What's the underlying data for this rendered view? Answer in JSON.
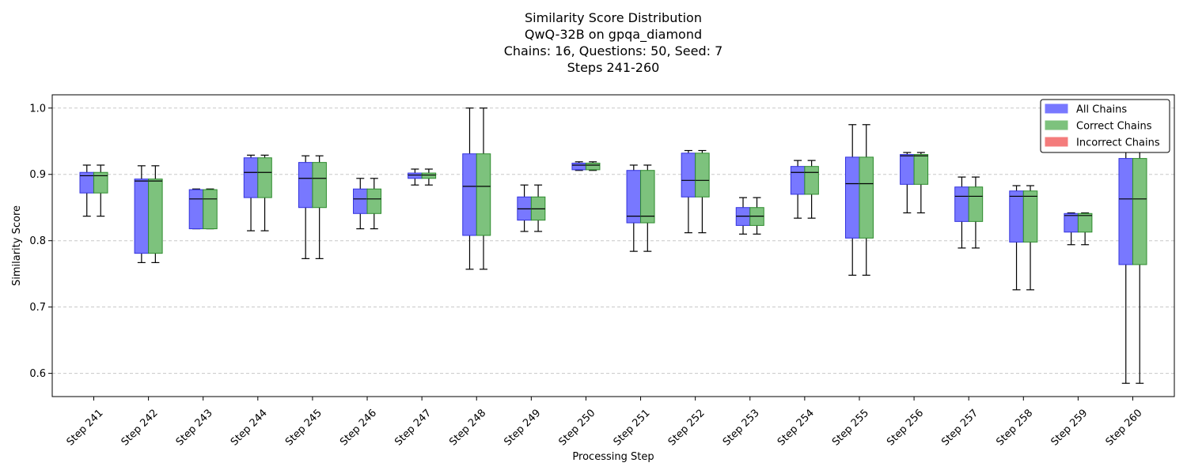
{
  "chart_data": {
    "type": "box",
    "title_lines": [
      "Similarity Score Distribution",
      "QwQ-32B on gpqa_diamond",
      "Chains: 16, Questions: 50, Seed: 7",
      "Steps 241-260"
    ],
    "xlabel": "Processing Step",
    "ylabel": "Similarity Score",
    "ylim": [
      0.565,
      1.02
    ],
    "yticks": [
      0.6,
      0.7,
      0.8,
      0.9,
      1.0
    ],
    "ytick_labels": [
      "0.6",
      "0.7",
      "0.8",
      "0.9",
      "1.0"
    ],
    "grid": "horizontal dashed",
    "legend_position": "top-right",
    "legend": [
      {
        "label": "All Chains",
        "color": "#7878ff"
      },
      {
        "label": "Correct Chains",
        "color": "#7dc27d"
      },
      {
        "label": "Incorrect Chains",
        "color": "#f47c7c"
      }
    ],
    "categories": [
      "Step 241",
      "Step 242",
      "Step 243",
      "Step 244",
      "Step 245",
      "Step 246",
      "Step 247",
      "Step 248",
      "Step 249",
      "Step 250",
      "Step 251",
      "Step 252",
      "Step 253",
      "Step 254",
      "Step 255",
      "Step 256",
      "Step 257",
      "Step 258",
      "Step 259",
      "Step 260"
    ],
    "series": [
      {
        "name": "All Chains",
        "color": "#7878ff",
        "edge": "#3333dd",
        "boxes": [
          {
            "whislo": 0.837,
            "q1": 0.872,
            "med": 0.898,
            "q3": 0.903,
            "whishi": 0.914
          },
          {
            "whislo": 0.767,
            "q1": 0.781,
            "med": 0.89,
            "q3": 0.893,
            "whishi": 0.913
          },
          {
            "whislo": 0.818,
            "q1": 0.818,
            "med": 0.863,
            "q3": 0.877,
            "whishi": 0.878
          },
          {
            "whislo": 0.815,
            "q1": 0.865,
            "med": 0.903,
            "q3": 0.925,
            "whishi": 0.929
          },
          {
            "whislo": 0.773,
            "q1": 0.85,
            "med": 0.894,
            "q3": 0.918,
            "whishi": 0.928
          },
          {
            "whislo": 0.818,
            "q1": 0.841,
            "med": 0.863,
            "q3": 0.878,
            "whishi": 0.894
          },
          {
            "whislo": 0.884,
            "q1": 0.894,
            "med": 0.899,
            "q3": 0.902,
            "whishi": 0.908
          },
          {
            "whislo": 0.757,
            "q1": 0.808,
            "med": 0.882,
            "q3": 0.931,
            "whishi": 1.0
          },
          {
            "whislo": 0.814,
            "q1": 0.831,
            "med": 0.848,
            "q3": 0.866,
            "whishi": 0.884
          },
          {
            "whislo": 0.906,
            "q1": 0.907,
            "med": 0.914,
            "q3": 0.917,
            "whishi": 0.919
          },
          {
            "whislo": 0.784,
            "q1": 0.827,
            "med": 0.837,
            "q3": 0.906,
            "whishi": 0.914
          },
          {
            "whislo": 0.812,
            "q1": 0.866,
            "med": 0.891,
            "q3": 0.932,
            "whishi": 0.936
          },
          {
            "whislo": 0.81,
            "q1": 0.823,
            "med": 0.837,
            "q3": 0.85,
            "whishi": 0.865
          },
          {
            "whislo": 0.834,
            "q1": 0.87,
            "med": 0.903,
            "q3": 0.912,
            "whishi": 0.921
          },
          {
            "whislo": 0.748,
            "q1": 0.804,
            "med": 0.886,
            "q3": 0.926,
            "whishi": 0.975
          },
          {
            "whislo": 0.842,
            "q1": 0.885,
            "med": 0.928,
            "q3": 0.93,
            "whishi": 0.933
          },
          {
            "whislo": 0.789,
            "q1": 0.829,
            "med": 0.867,
            "q3": 0.881,
            "whishi": 0.896
          },
          {
            "whislo": 0.726,
            "q1": 0.798,
            "med": 0.867,
            "q3": 0.875,
            "whishi": 0.883
          },
          {
            "whislo": 0.794,
            "q1": 0.813,
            "med": 0.838,
            "q3": 0.841,
            "whishi": 0.842
          },
          {
            "whislo": 0.585,
            "q1": 0.764,
            "med": 0.863,
            "q3": 0.924,
            "whishi": 0.985
          }
        ]
      },
      {
        "name": "Correct Chains",
        "color": "#7dc27d",
        "edge": "#2e8b2e",
        "boxes": [
          {
            "whislo": 0.837,
            "q1": 0.872,
            "med": 0.898,
            "q3": 0.903,
            "whishi": 0.914
          },
          {
            "whislo": 0.767,
            "q1": 0.781,
            "med": 0.89,
            "q3": 0.893,
            "whishi": 0.913
          },
          {
            "whislo": 0.818,
            "q1": 0.818,
            "med": 0.863,
            "q3": 0.877,
            "whishi": 0.878
          },
          {
            "whislo": 0.815,
            "q1": 0.865,
            "med": 0.903,
            "q3": 0.925,
            "whishi": 0.929
          },
          {
            "whislo": 0.773,
            "q1": 0.85,
            "med": 0.894,
            "q3": 0.918,
            "whishi": 0.928
          },
          {
            "whislo": 0.818,
            "q1": 0.841,
            "med": 0.863,
            "q3": 0.878,
            "whishi": 0.894
          },
          {
            "whislo": 0.884,
            "q1": 0.894,
            "med": 0.899,
            "q3": 0.902,
            "whishi": 0.908
          },
          {
            "whislo": 0.757,
            "q1": 0.808,
            "med": 0.882,
            "q3": 0.931,
            "whishi": 1.0
          },
          {
            "whislo": 0.814,
            "q1": 0.831,
            "med": 0.848,
            "q3": 0.866,
            "whishi": 0.884
          },
          {
            "whislo": 0.906,
            "q1": 0.907,
            "med": 0.914,
            "q3": 0.917,
            "whishi": 0.919
          },
          {
            "whislo": 0.784,
            "q1": 0.827,
            "med": 0.837,
            "q3": 0.906,
            "whishi": 0.914
          },
          {
            "whislo": 0.812,
            "q1": 0.866,
            "med": 0.891,
            "q3": 0.932,
            "whishi": 0.936
          },
          {
            "whislo": 0.81,
            "q1": 0.823,
            "med": 0.837,
            "q3": 0.85,
            "whishi": 0.865
          },
          {
            "whislo": 0.834,
            "q1": 0.87,
            "med": 0.903,
            "q3": 0.912,
            "whishi": 0.921
          },
          {
            "whislo": 0.748,
            "q1": 0.804,
            "med": 0.886,
            "q3": 0.926,
            "whishi": 0.975
          },
          {
            "whislo": 0.842,
            "q1": 0.885,
            "med": 0.928,
            "q3": 0.93,
            "whishi": 0.933
          },
          {
            "whislo": 0.789,
            "q1": 0.829,
            "med": 0.867,
            "q3": 0.881,
            "whishi": 0.896
          },
          {
            "whislo": 0.726,
            "q1": 0.798,
            "med": 0.867,
            "q3": 0.875,
            "whishi": 0.883
          },
          {
            "whislo": 0.794,
            "q1": 0.813,
            "med": 0.838,
            "q3": 0.841,
            "whishi": 0.842
          },
          {
            "whislo": 0.585,
            "q1": 0.764,
            "med": 0.863,
            "q3": 0.924,
            "whishi": 0.985
          }
        ]
      }
    ]
  }
}
